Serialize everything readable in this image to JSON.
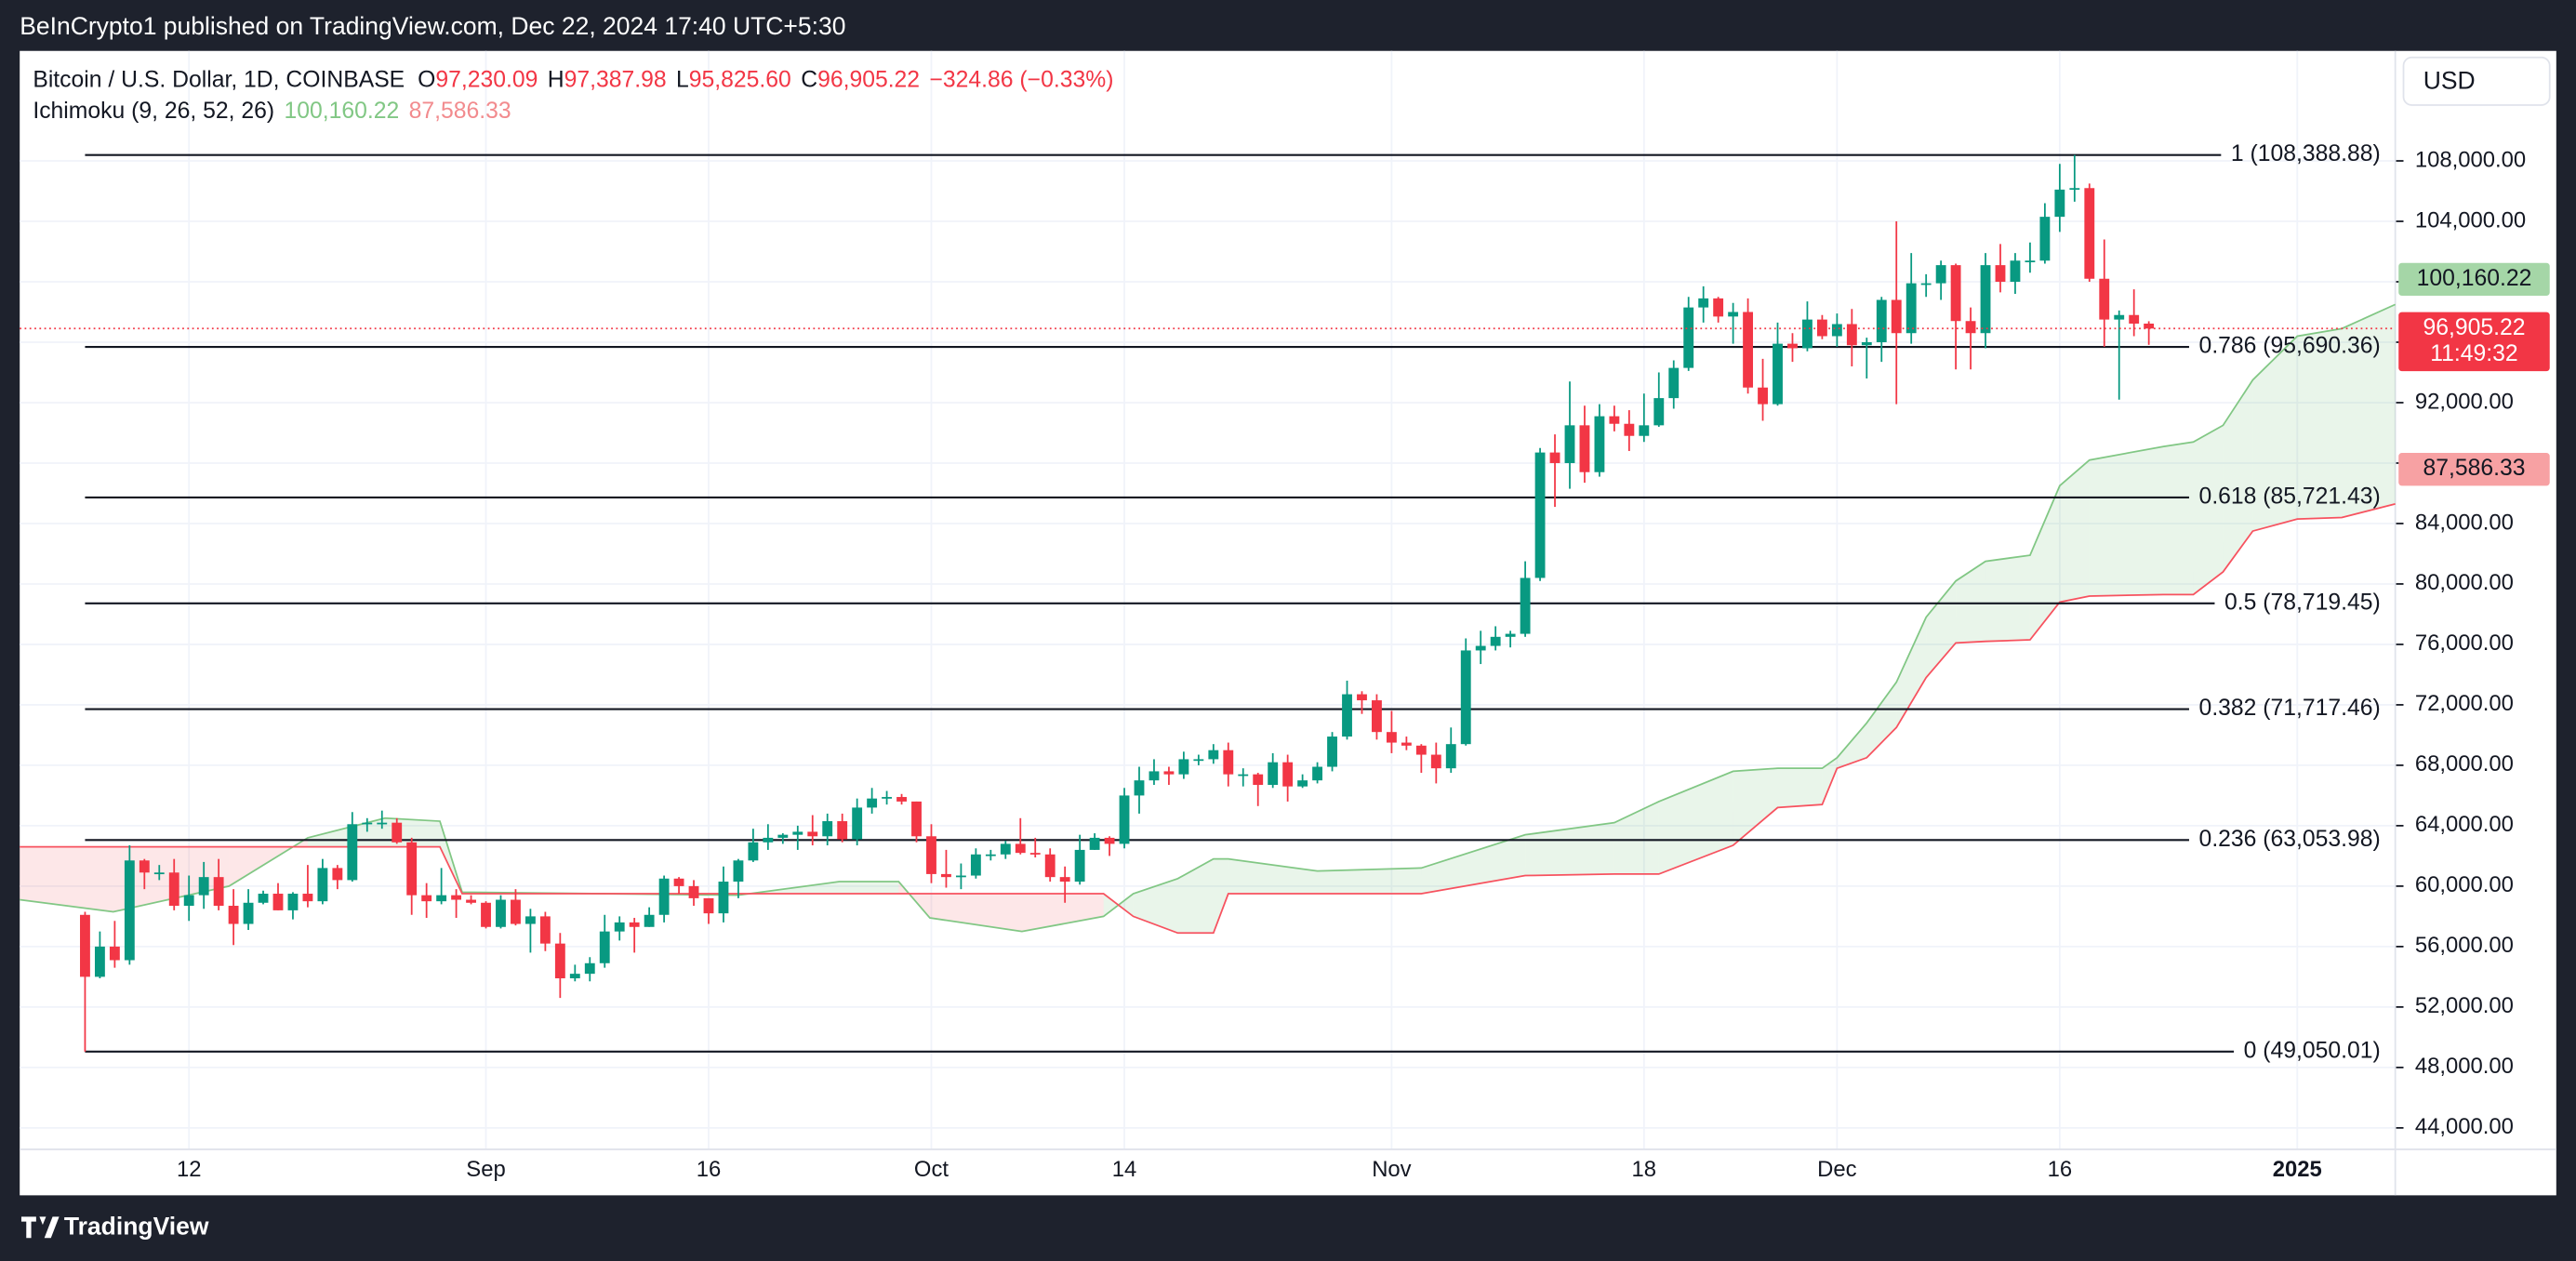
{
  "header": {
    "publisher": "BeInCrypto1 published on TradingView.com, Dec 22, 2024 17:40 UTC+5:30",
    "brand": "TradingView",
    "currency": "USD"
  },
  "chart_data": {
    "type": "candlestick",
    "legend": {
      "symbol": "Bitcoin / U.S. Dollar, 1D, COINBASE",
      "fields": [
        {
          "key": "O",
          "value": "97,230.09"
        },
        {
          "key": "H",
          "value": "97,387.98"
        },
        {
          "key": "L",
          "value": "95,825.60"
        },
        {
          "key": "C",
          "value": "96,905.22"
        }
      ],
      "change": "−324.86 (−0.33%)"
    },
    "indicator": {
      "name": "Ichimoku (9, 26, 52, 26)",
      "values": [
        "100,160.22",
        "87,586.33"
      ],
      "colors": [
        "#81c784",
        "#f28b8e"
      ]
    },
    "up_color": "#089981",
    "down_color": "#f23645",
    "ohlc": [
      [
        58100,
        58300,
        49050.01,
        54000
      ],
      [
        54000,
        57000,
        53900,
        56000
      ],
      [
        56000,
        57700,
        54600,
        55100
      ],
      [
        55100,
        62700,
        54800,
        61700
      ],
      [
        61700,
        61800,
        59800,
        60900
      ],
      [
        60900,
        61400,
        60400,
        60900
      ],
      [
        60900,
        61800,
        58400,
        58700
      ],
      [
        58700,
        60700,
        57700,
        59400
      ],
      [
        59400,
        61600,
        58500,
        60600
      ],
      [
        60600,
        61800,
        58400,
        58700
      ],
      [
        58700,
        59800,
        56100,
        57500
      ],
      [
        57500,
        59800,
        57100,
        58900
      ],
      [
        58900,
        59700,
        58800,
        59500
      ],
      [
        59500,
        60200,
        58400,
        58400
      ],
      [
        58400,
        59600,
        57800,
        59500
      ],
      [
        59500,
        61400,
        58600,
        59000
      ],
      [
        59000,
        61800,
        58800,
        61200
      ],
      [
        61200,
        61400,
        59800,
        60400
      ],
      [
        60400,
        64900,
        60300,
        64100
      ],
      [
        64100,
        64500,
        63600,
        64200
      ],
      [
        64200,
        65000,
        63800,
        64200
      ],
      [
        64200,
        64500,
        62800,
        62900
      ],
      [
        62900,
        63200,
        58100,
        59400
      ],
      [
        59400,
        60200,
        57900,
        59000
      ],
      [
        59000,
        61200,
        58800,
        59400
      ],
      [
        59400,
        59800,
        57900,
        59100
      ],
      [
        59100,
        59400,
        58800,
        58900
      ],
      [
        58900,
        59000,
        57200,
        57300
      ],
      [
        57300,
        59400,
        57200,
        59100
      ],
      [
        59100,
        59800,
        57400,
        57500
      ],
      [
        57500,
        58500,
        55600,
        58000
      ],
      [
        58000,
        58300,
        55700,
        56200
      ],
      [
        56200,
        56900,
        52600,
        53900
      ],
      [
        53900,
        54800,
        53700,
        54200
      ],
      [
        54200,
        55300,
        53700,
        54900
      ],
      [
        54900,
        58100,
        54600,
        57000
      ],
      [
        57000,
        58000,
        56400,
        57600
      ],
      [
        57600,
        57900,
        55600,
        57300
      ],
      [
        57300,
        58600,
        57300,
        58100
      ],
      [
        58100,
        60700,
        57600,
        60500
      ],
      [
        60500,
        60600,
        59500,
        60000
      ],
      [
        60000,
        60400,
        58700,
        59200
      ],
      [
        59200,
        59200,
        57500,
        58200
      ],
      [
        58200,
        61300,
        57600,
        60300
      ],
      [
        60300,
        61800,
        59200,
        61700
      ],
      [
        61700,
        63800,
        61600,
        62900
      ],
      [
        62900,
        64100,
        62400,
        63200
      ],
      [
        63200,
        63500,
        62800,
        63400
      ],
      [
        63400,
        64000,
        62400,
        63600
      ],
      [
        63600,
        64700,
        62700,
        63300
      ],
      [
        63300,
        64800,
        62700,
        64300
      ],
      [
        64300,
        64800,
        62900,
        63100
      ],
      [
        63100,
        65800,
        62700,
        65200
      ],
      [
        65200,
        66500,
        64800,
        65800
      ],
      [
        65800,
        66300,
        65400,
        65900
      ],
      [
        65900,
        66100,
        65400,
        65600
      ],
      [
        65600,
        65600,
        62900,
        63300
      ],
      [
        63300,
        64100,
        60200,
        60800
      ],
      [
        60800,
        62400,
        59900,
        60600
      ],
      [
        60600,
        61500,
        59800,
        60700
      ],
      [
        60700,
        62500,
        60500,
        62100
      ],
      [
        62100,
        62400,
        61700,
        62100
      ],
      [
        62100,
        63000,
        61800,
        62800
      ],
      [
        62800,
        64500,
        62100,
        62200
      ],
      [
        62200,
        63200,
        61900,
        62100
      ],
      [
        62100,
        62500,
        60300,
        60600
      ],
      [
        60600,
        61300,
        58900,
        60300
      ],
      [
        60300,
        63400,
        60100,
        62400
      ],
      [
        62400,
        63500,
        62400,
        63200
      ],
      [
        63200,
        63300,
        62000,
        62800
      ],
      [
        62800,
        66500,
        62500,
        66000
      ],
      [
        66000,
        67900,
        64800,
        67000
      ],
      [
        67000,
        68400,
        66700,
        67600
      ],
      [
        67600,
        67900,
        66700,
        67400
      ],
      [
        67400,
        68900,
        67100,
        68400
      ],
      [
        68400,
        68700,
        68000,
        68400
      ],
      [
        68400,
        69400,
        68100,
        69000
      ],
      [
        69000,
        69500,
        66600,
        67400
      ],
      [
        67400,
        67800,
        66600,
        67400
      ],
      [
        67400,
        67500,
        65300,
        66700
      ],
      [
        66700,
        68800,
        66500,
        68200
      ],
      [
        68200,
        68700,
        65600,
        66600
      ],
      [
        66600,
        67400,
        66500,
        67000
      ],
      [
        67000,
        68200,
        66800,
        67900
      ],
      [
        67900,
        70200,
        67600,
        69900
      ],
      [
        69900,
        73600,
        69700,
        72700
      ],
      [
        72700,
        72900,
        71400,
        72300
      ],
      [
        72300,
        72700,
        69700,
        70200
      ],
      [
        70200,
        71600,
        68800,
        69500
      ],
      [
        69500,
        69900,
        69000,
        69300
      ],
      [
        69300,
        69400,
        67500,
        68700
      ],
      [
        68700,
        69500,
        66800,
        67800
      ],
      [
        67800,
        70500,
        67500,
        69400
      ],
      [
        69400,
        76400,
        69300,
        75600
      ],
      [
        75600,
        76900,
        74700,
        75900
      ],
      [
        75900,
        77200,
        75600,
        76500
      ],
      [
        76500,
        76900,
        75800,
        76700
      ],
      [
        76700,
        81500,
        76500,
        80400
      ],
      [
        80400,
        89000,
        80200,
        88700
      ],
      [
        88700,
        89900,
        85100,
        88000
      ],
      [
        88000,
        93400,
        86300,
        90500
      ],
      [
        90500,
        91800,
        86700,
        87400
      ],
      [
        87400,
        91900,
        87100,
        91100
      ],
      [
        91100,
        91800,
        90100,
        90600
      ],
      [
        90600,
        91500,
        88800,
        89800
      ],
      [
        89800,
        92600,
        89400,
        90500
      ],
      [
        90500,
        94000,
        90400,
        92300
      ],
      [
        92300,
        94800,
        91600,
        94300
      ],
      [
        94300,
        99000,
        94100,
        98300
      ],
      [
        98300,
        99700,
        97300,
        98900
      ],
      [
        98900,
        99000,
        97300,
        97700
      ],
      [
        97700,
        98600,
        95900,
        98000
      ],
      [
        98000,
        98900,
        92600,
        93000
      ],
      [
        93000,
        94900,
        90800,
        91900
      ],
      [
        91900,
        97300,
        91800,
        95900
      ],
      [
        95900,
        96600,
        94700,
        95600
      ],
      [
        95600,
        98700,
        95400,
        97500
      ],
      [
        97500,
        97800,
        96200,
        96400
      ],
      [
        96400,
        97900,
        95700,
        97200
      ],
      [
        97200,
        98200,
        94400,
        95800
      ],
      [
        95800,
        96300,
        93600,
        96000
      ],
      [
        96000,
        99000,
        94700,
        98800
      ],
      [
        98800,
        104000,
        91900,
        96600
      ],
      [
        96600,
        101900,
        95900,
        99900
      ],
      [
        99900,
        100500,
        99000,
        99900
      ],
      [
        99900,
        101400,
        98800,
        101100
      ],
      [
        101100,
        101200,
        94200,
        97400
      ],
      [
        97400,
        98300,
        94200,
        96600
      ],
      [
        96600,
        101900,
        95600,
        101100
      ],
      [
        101100,
        102500,
        99300,
        100000
      ],
      [
        100000,
        101900,
        99200,
        101400
      ],
      [
        101400,
        102600,
        100600,
        101400
      ],
      [
        101400,
        105200,
        101200,
        104300
      ],
      [
        104300,
        107800,
        103300,
        106100
      ],
      [
        106100,
        108388.88,
        105300,
        106200
      ],
      [
        106200,
        106500,
        100000,
        100200
      ],
      [
        100200,
        102800,
        95700,
        97500
      ],
      [
        97500,
        98100,
        92200,
        97800
      ],
      [
        97800,
        99500,
        96400,
        97230
      ],
      [
        97230.09,
        97387.98,
        95825.6,
        96905.22
      ]
    ],
    "xlim": [
      -4.4,
      155.6
    ],
    "xticks": [
      {
        "value": 7,
        "label": "12"
      },
      {
        "value": 27,
        "label": "Sep"
      },
      {
        "value": 42,
        "label": "16"
      },
      {
        "value": 57,
        "label": "Oct"
      },
      {
        "value": 70,
        "label": "14"
      },
      {
        "value": 88,
        "label": "Nov"
      },
      {
        "value": 105,
        "label": "18"
      },
      {
        "value": 118,
        "label": "Dec"
      },
      {
        "value": 133,
        "label": "16"
      },
      {
        "value": 149,
        "label": "2025"
      }
    ],
    "ylim": [
      42580,
      115280
    ],
    "yticks": [
      {
        "value": 44000,
        "label": "44,000.00"
      },
      {
        "value": 48000,
        "label": "48,000.00"
      },
      {
        "value": 52000,
        "label": "52,000.00"
      },
      {
        "value": 56000,
        "label": "56,000.00"
      },
      {
        "value": 60000,
        "label": "60,000.00"
      },
      {
        "value": 64000,
        "label": "64,000.00"
      },
      {
        "value": 68000,
        "label": "68,000.00"
      },
      {
        "value": 72000,
        "label": "72,000.00"
      },
      {
        "value": 76000,
        "label": "76,000.00"
      },
      {
        "value": 80000,
        "label": "80,000.00"
      },
      {
        "value": 84000,
        "label": "84,000.00"
      },
      {
        "value": 88000,
        "label": "88,000.00"
      },
      {
        "value": 92000,
        "label": "92,000.00"
      },
      {
        "value": 96000,
        "label": "96,000.00"
      },
      {
        "value": 100000,
        "label": "100,000.00"
      },
      {
        "value": 104000,
        "label": "104,000.00"
      },
      {
        "value": 108000,
        "label": "108,000.00"
      }
    ],
    "grid": true,
    "ichimoku": {
      "x": [
        -4.4,
        1.9,
        9.7,
        15,
        20.2,
        23.9,
        25.4,
        44,
        50.8,
        54.8,
        56.9,
        63.1,
        68.6,
        70.6,
        73.6,
        76,
        77,
        83,
        90,
        97,
        103,
        106,
        111,
        114,
        117,
        118,
        120,
        122,
        124,
        126,
        128,
        131,
        133,
        135,
        140,
        142,
        144,
        146,
        149,
        152,
        155.6
      ],
      "span_a": [
        59100,
        58300,
        60000,
        63200,
        64500,
        64300,
        59600,
        59400,
        60300,
        60300,
        57900,
        57000,
        58000,
        59500,
        60500,
        61800,
        61800,
        61000,
        61200,
        63400,
        64200,
        65600,
        67600,
        67800,
        67800,
        68500,
        70800,
        73500,
        77800,
        80200,
        81500,
        81900,
        86500,
        88200,
        89100,
        89400,
        90500,
        93500,
        96400,
        96900,
        98500
      ],
      "span_b": [
        62600,
        62600,
        62600,
        62600,
        62600,
        62600,
        59500,
        59500,
        59500,
        59500,
        59500,
        59500,
        59500,
        58000,
        56900,
        56900,
        59500,
        59500,
        59500,
        60700,
        60800,
        60800,
        62700,
        65200,
        65400,
        67800,
        68500,
        70500,
        73800,
        76100,
        76200,
        76300,
        78800,
        79200,
        79300,
        79300,
        80800,
        83500,
        84300,
        84400,
        85300
      ],
      "span_a_color": "#81c784",
      "span_b_color": "#f7525f"
    },
    "fib_levels": [
      {
        "value": 108388.88,
        "label": "1 (108,388.88)"
      },
      {
        "value": 95690.36,
        "label": "0.786 (95,690.36)"
      },
      {
        "value": 85721.43,
        "label": "0.618 (85,721.43)"
      },
      {
        "value": 78719.45,
        "label": "0.5 (78,719.45)"
      },
      {
        "value": 71717.46,
        "label": "0.382 (71,717.46)"
      },
      {
        "value": 63053.98,
        "label": "0.236 (63,053.98)"
      },
      {
        "value": 49050.01,
        "label": "0 (49,050.01)"
      }
    ],
    "price_tags": [
      {
        "value": 100160.22,
        "label": "100,160.22",
        "color": "#a5d6a7",
        "text_color": "#131722"
      },
      {
        "value": 96905.22,
        "label": "96,905.22",
        "sublabel": "11:49:32",
        "color": "#f23645",
        "text_color": "#ffffff"
      },
      {
        "value": 87586.33,
        "label": "87,586.33",
        "color": "#f7a1a3",
        "text_color": "#131722"
      }
    ]
  }
}
